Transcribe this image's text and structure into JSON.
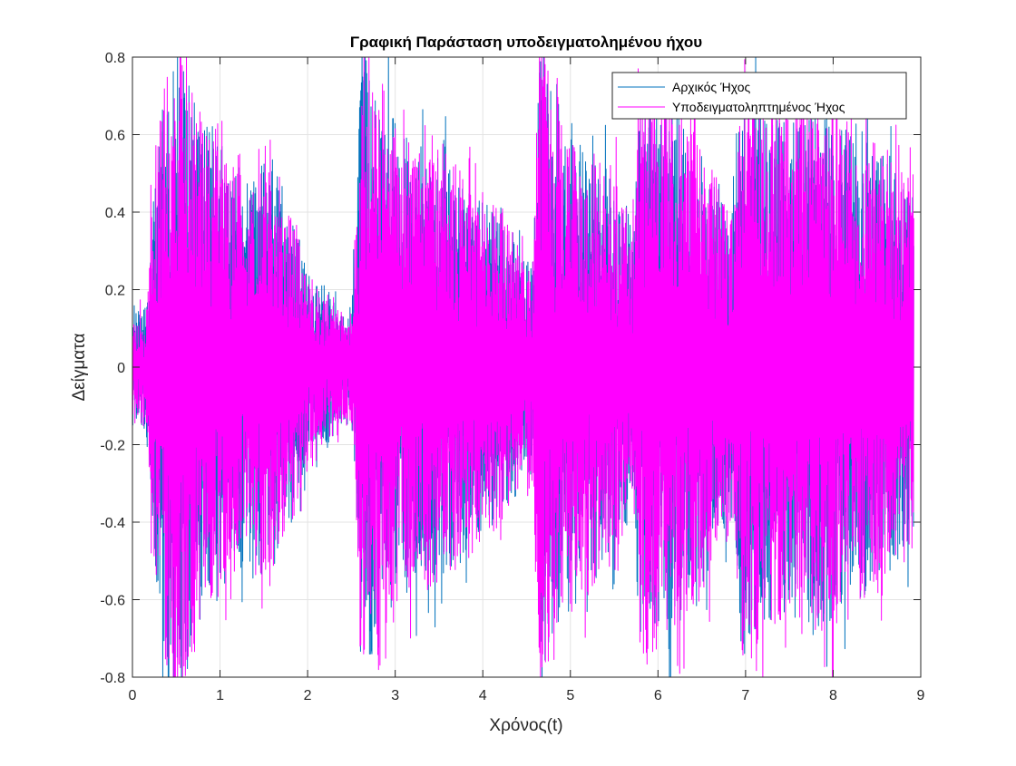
{
  "chart_data": {
    "type": "line",
    "title": "Γραφική Παράσταση υποδειγματολημένου ήχου",
    "xlabel": "Χρόνος(t)",
    "ylabel": "Δείγματα",
    "xlim": [
      0,
      9
    ],
    "ylim": [
      -0.8,
      0.8
    ],
    "xticks": [
      "0",
      "1",
      "2",
      "3",
      "4",
      "5",
      "6",
      "7",
      "8",
      "9"
    ],
    "yticks": [
      "-0.8",
      "-0.6",
      "-0.4",
      "-0.2",
      "0",
      "0.2",
      "0.4",
      "0.6",
      "0.8"
    ],
    "grid": true,
    "legend_position": "top-right",
    "data_extent_x": 8.92,
    "series": [
      {
        "name": "Αρχικός Ήχος",
        "color": "#0072BD",
        "envelope": {
          "t": [
            0,
            0.15,
            0.25,
            0.35,
            0.55,
            0.8,
            1.0,
            1.3,
            1.55,
            1.8,
            2.0,
            2.3,
            2.5,
            2.55,
            2.62,
            2.7,
            2.9,
            3.2,
            3.5,
            3.9,
            4.2,
            4.5,
            4.57,
            4.65,
            4.8,
            5.1,
            5.4,
            5.65,
            5.72,
            5.8,
            6.0,
            6.3,
            6.6,
            6.8,
            6.87,
            6.95,
            7.2,
            7.5,
            7.8,
            8.1,
            8.4,
            8.7,
            8.92
          ],
          "amplitude": [
            0.12,
            0.12,
            0.45,
            0.62,
            0.72,
            0.55,
            0.5,
            0.42,
            0.48,
            0.35,
            0.22,
            0.15,
            0.12,
            0.3,
            0.78,
            0.7,
            0.6,
            0.48,
            0.5,
            0.38,
            0.35,
            0.25,
            0.25,
            0.72,
            0.62,
            0.5,
            0.45,
            0.35,
            0.35,
            0.62,
            0.6,
            0.55,
            0.45,
            0.35,
            0.35,
            0.65,
            0.58,
            0.55,
            0.6,
            0.55,
            0.5,
            0.45,
            0.38
          ]
        }
      },
      {
        "name": "Υποδειγματοληπτημένος Ήχος",
        "color": "#FF00FF",
        "envelope": {
          "t": [
            0,
            0.15,
            0.25,
            0.35,
            0.55,
            0.8,
            1.0,
            1.3,
            1.55,
            1.8,
            2.0,
            2.3,
            2.5,
            2.55,
            2.62,
            2.7,
            2.9,
            3.2,
            3.5,
            3.9,
            4.2,
            4.5,
            4.57,
            4.65,
            4.8,
            5.1,
            5.4,
            5.65,
            5.72,
            5.8,
            6.0,
            6.3,
            6.6,
            6.8,
            6.87,
            6.95,
            7.2,
            7.5,
            7.8,
            8.1,
            8.4,
            8.7,
            8.92
          ],
          "amplitude": [
            0.12,
            0.12,
            0.48,
            0.66,
            0.78,
            0.58,
            0.52,
            0.44,
            0.5,
            0.36,
            0.22,
            0.15,
            0.12,
            0.32,
            0.82,
            0.74,
            0.64,
            0.5,
            0.52,
            0.4,
            0.36,
            0.26,
            0.26,
            0.76,
            0.66,
            0.52,
            0.46,
            0.36,
            0.36,
            0.66,
            0.64,
            0.58,
            0.47,
            0.36,
            0.36,
            0.69,
            0.62,
            0.58,
            0.64,
            0.58,
            0.52,
            0.47,
            0.4
          ]
        }
      }
    ]
  }
}
